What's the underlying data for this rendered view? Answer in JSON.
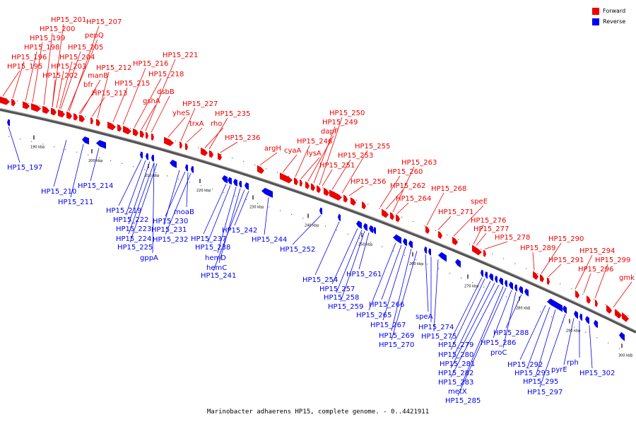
{
  "caption": "Marinobacter adhaerens HP15, complete genome. - 0..4421911",
  "legend": [
    {
      "label": "Forward",
      "color": "#ee0000"
    },
    {
      "label": "Reverse",
      "color": "#0000ee"
    }
  ],
  "colors": {
    "forward": "#ee0000",
    "reverse": "#0000ee",
    "backbone": "#777777"
  },
  "ticks": [
    "190 kbp",
    "200 kbp",
    "210 kbp",
    "220 kbp",
    "230 kbp",
    "240 kbp",
    "250 kbp",
    "260 kbp",
    "270 kbp",
    "280 kbp",
    "290 kbp",
    "300 kbp"
  ],
  "forward_labels": [
    "HP15_195",
    "HP15_196",
    "HP15_198",
    "HP15_199",
    "HP15_200",
    "HP15_201",
    "HP15_207",
    "pepQ",
    "HP15_205",
    "HP15_204",
    "HP15_203",
    "HP15_202",
    "manB",
    "bfr",
    "HP15_212",
    "HP15_213",
    "HP15_215",
    "HP15_216",
    "HP15_218",
    "HP15_221",
    "gshA",
    "dsbB",
    "yheS",
    "HP15_227",
    "trxA",
    "rho",
    "HP15_235",
    "HP15_236",
    "argH",
    "cyaA",
    "HP15_246",
    "lysA",
    "dapF",
    "HP15_249",
    "HP15_250",
    "HP15_251",
    "HP15_253",
    "HP15_255",
    "HP15_256",
    "HP15_260",
    "HP15_262",
    "HP15_263",
    "HP15_264",
    "HP15_268",
    "HP15_271",
    "speE",
    "HP15_276",
    "HP15_277",
    "HP15_278",
    "HP15_289",
    "HP15_290",
    "HP15_291",
    "HP15_294",
    "HP15_296",
    "HP15_299",
    "gmk"
  ],
  "reverse_labels": [
    "HP15_197",
    "HP15_210",
    "HP15_211",
    "HP15_214",
    "HP15_219",
    "HP15_222",
    "HP15_223",
    "HP15_224",
    "HP15_225",
    "gppA",
    "moaB",
    "HP15_230",
    "HP15_231",
    "HP15_232",
    "HP15_237",
    "HP15_238",
    "hemD",
    "hemC",
    "HP15_241",
    "HP15_242",
    "HP15_244",
    "HP15_252",
    "HP15_254",
    "HP15_257",
    "HP15_258",
    "HP15_259",
    "HP15_261",
    "HP15_265",
    "HP15_266",
    "HP15_267",
    "HP15_269",
    "HP15_270",
    "speA",
    "HP15_274",
    "HP15_275",
    "HP15_279",
    "HP15_280",
    "HP15_281",
    "HP15_282",
    "HP15_283",
    "metX",
    "HP15_285",
    "HP15_286",
    "proC",
    "HP15_288",
    "HP15_292",
    "HP15_293",
    "HP15_295",
    "HP15_297",
    "pyrE",
    "rph",
    "HP15_302"
  ]
}
